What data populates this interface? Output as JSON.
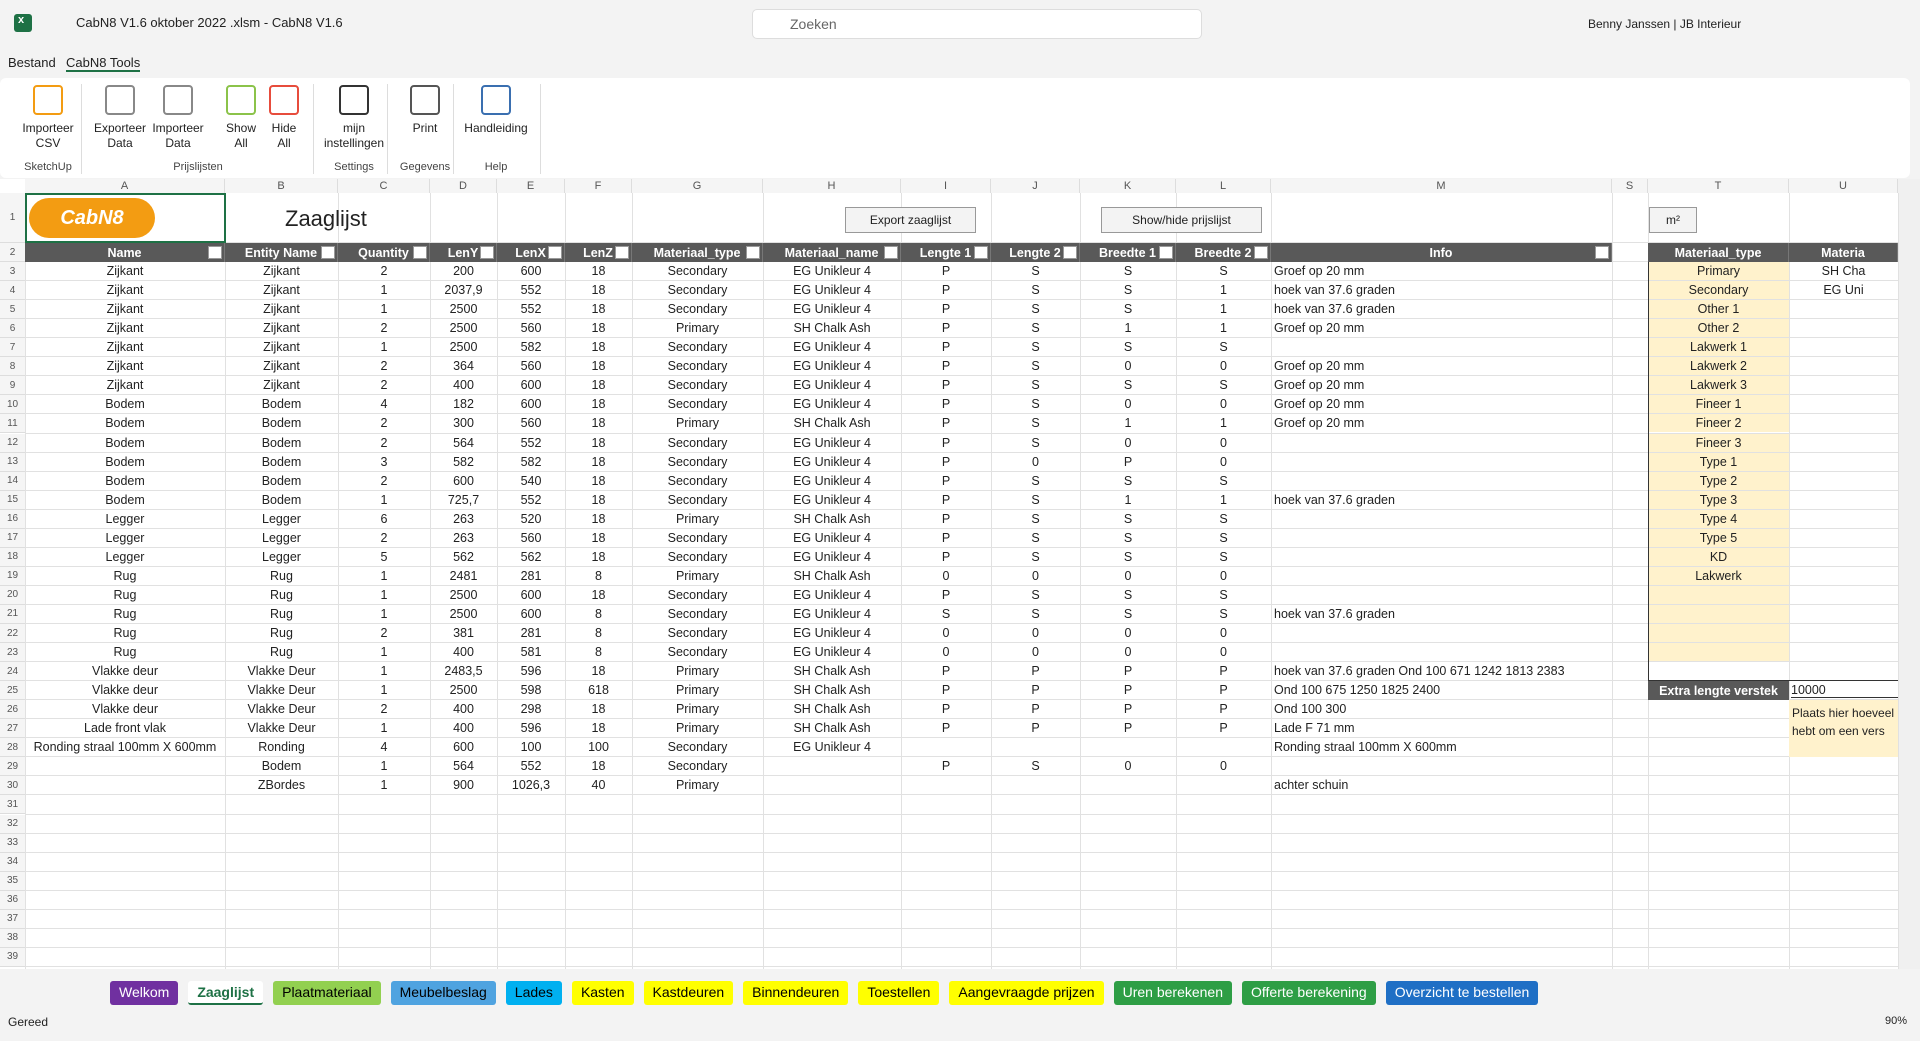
{
  "title_bar": {
    "file": "CabN8 V1.6 oktober 2022 .xlsm  -  CabN8 V1.6",
    "search": "Zoeken",
    "user": "Benny Janssen | JB Interieur"
  },
  "menu": [
    "Bestand",
    "CabN8 Tools"
  ],
  "ribbon": {
    "groups": [
      {
        "label": "SketchUp",
        "buttons": [
          [
            "Importeer",
            "CSV"
          ]
        ]
      },
      {
        "label": "Prijslijsten",
        "buttons": [
          [
            "Exporteer",
            "Data"
          ],
          [
            "Importeer",
            "Data"
          ],
          [
            "Show",
            "All"
          ],
          [
            "Hide",
            "All"
          ]
        ]
      },
      {
        "label": "Settings",
        "buttons": [
          [
            "mijn",
            "instellingen"
          ]
        ]
      },
      {
        "label": "Gegevens",
        "buttons": [
          [
            "Print"
          ]
        ]
      },
      {
        "label": "Help",
        "buttons": [
          [
            "Handleiding"
          ]
        ]
      }
    ]
  },
  "sheet": {
    "column_letters": [
      "A",
      "B",
      "C",
      "D",
      "E",
      "F",
      "G",
      "H",
      "I",
      "J",
      "K",
      "L",
      "M",
      "S",
      "T",
      "U"
    ],
    "row_numbers": [
      1,
      2,
      3,
      4,
      5,
      6,
      7,
      8,
      9,
      10,
      11,
      12,
      13,
      14,
      15,
      16,
      17,
      18,
      19,
      20,
      21,
      22,
      23,
      24,
      25,
      26,
      27,
      28,
      29,
      30,
      31,
      32,
      33,
      34,
      35,
      36,
      37,
      38,
      39
    ],
    "logo": "CabN8",
    "title": "Zaaglijst",
    "buttons": [
      "Export zaaglijst",
      "Show/hide prijslijst",
      "m²"
    ],
    "headers": [
      "Name",
      "Entity Name",
      "Quantity",
      "LenY",
      "LenX",
      "LenZ",
      "Materiaal_type",
      "Materiaal_name",
      "Lengte 1",
      "Lengte 2",
      "Breedte 1",
      "Breedte 2",
      "Info"
    ],
    "rows": [
      [
        "Zijkant",
        "Zijkant",
        "2",
        "200",
        "600",
        "18",
        "Secondary",
        "EG Unikleur 4",
        "P",
        "S",
        "S",
        "S",
        "Groef op 20 mm"
      ],
      [
        "Zijkant",
        "Zijkant",
        "1",
        "2037,9",
        "552",
        "18",
        "Secondary",
        "EG Unikleur 4",
        "P",
        "S",
        "S",
        "1",
        "hoek van 37.6 graden"
      ],
      [
        "Zijkant",
        "Zijkant",
        "1",
        "2500",
        "552",
        "18",
        "Secondary",
        "EG Unikleur 4",
        "P",
        "S",
        "S",
        "1",
        "hoek van 37.6 graden"
      ],
      [
        "Zijkant",
        "Zijkant",
        "2",
        "2500",
        "560",
        "18",
        "Primary",
        "SH Chalk Ash",
        "P",
        "S",
        "1",
        "1",
        "Groef op 20 mm"
      ],
      [
        "Zijkant",
        "Zijkant",
        "1",
        "2500",
        "582",
        "18",
        "Secondary",
        "EG Unikleur 4",
        "P",
        "S",
        "S",
        "S",
        null
      ],
      [
        "Zijkant",
        "Zijkant",
        "2",
        "364",
        "560",
        "18",
        "Secondary",
        "EG Unikleur 4",
        "P",
        "S",
        "0",
        "0",
        "Groef op 20 mm"
      ],
      [
        "Zijkant",
        "Zijkant",
        "2",
        "400",
        "600",
        "18",
        "Secondary",
        "EG Unikleur 4",
        "P",
        "S",
        "S",
        "S",
        "Groef op 20 mm"
      ],
      [
        "Bodem",
        "Bodem",
        "4",
        "182",
        "600",
        "18",
        "Secondary",
        "EG Unikleur 4",
        "P",
        "S",
        "0",
        "0",
        "Groef op 20 mm"
      ],
      [
        "Bodem",
        "Bodem",
        "2",
        "300",
        "560",
        "18",
        "Primary",
        "SH Chalk Ash",
        "P",
        "S",
        "1",
        "1",
        "Groef op 20 mm"
      ],
      [
        "Bodem",
        "Bodem",
        "2",
        "564",
        "552",
        "18",
        "Secondary",
        "EG Unikleur 4",
        "P",
        "S",
        "0",
        "0",
        null
      ],
      [
        "Bodem",
        "Bodem",
        "3",
        "582",
        "582",
        "18",
        "Secondary",
        "EG Unikleur 4",
        "P",
        "0",
        "P",
        "0",
        null
      ],
      [
        "Bodem",
        "Bodem",
        "2",
        "600",
        "540",
        "18",
        "Secondary",
        "EG Unikleur 4",
        "P",
        "S",
        "S",
        "S",
        null
      ],
      [
        "Bodem",
        "Bodem",
        "1",
        "725,7",
        "552",
        "18",
        "Secondary",
        "EG Unikleur 4",
        "P",
        "S",
        "1",
        "1",
        "hoek van 37.6 graden"
      ],
      [
        "Legger",
        "Legger",
        "6",
        "263",
        "520",
        "18",
        "Primary",
        "SH Chalk Ash",
        "P",
        "S",
        "S",
        "S",
        null
      ],
      [
        "Legger",
        "Legger",
        "2",
        "263",
        "560",
        "18",
        "Secondary",
        "EG Unikleur 4",
        "P",
        "S",
        "S",
        "S",
        null
      ],
      [
        "Legger",
        "Legger",
        "5",
        "562",
        "562",
        "18",
        "Secondary",
        "EG Unikleur 4",
        "P",
        "S",
        "S",
        "S",
        null
      ],
      [
        "Rug",
        "Rug",
        "1",
        "2481",
        "281",
        "8",
        "Primary",
        "SH Chalk Ash",
        "0",
        "0",
        "0",
        "0",
        null
      ],
      [
        "Rug",
        "Rug",
        "1",
        "2500",
        "600",
        "18",
        "Secondary",
        "EG Unikleur 4",
        "P",
        "S",
        "S",
        "S",
        null
      ],
      [
        "Rug",
        "Rug",
        "1",
        "2500",
        "600",
        "8",
        "Secondary",
        "EG Unikleur 4",
        "S",
        "S",
        "S",
        "S",
        "hoek van 37.6 graden"
      ],
      [
        "Rug",
        "Rug",
        "2",
        "381",
        "281",
        "8",
        "Secondary",
        "EG Unikleur 4",
        "0",
        "0",
        "0",
        "0",
        null
      ],
      [
        "Rug",
        "Rug",
        "1",
        "400",
        "581",
        "8",
        "Secondary",
        "EG Unikleur 4",
        "0",
        "0",
        "0",
        "0",
        null
      ],
      [
        "Vlakke deur",
        "Vlakke Deur",
        "1",
        "2483,5",
        "596",
        "18",
        "Primary",
        "SH Chalk Ash",
        "P",
        "P",
        "P",
        "P",
        "hoek van 37.6 graden Ond 100  671  1242  1813  2383"
      ],
      [
        "Vlakke deur",
        "Vlakke Deur",
        "1",
        "2500",
        "598",
        "618",
        "Primary",
        "SH Chalk Ash",
        "P",
        "P",
        "P",
        "P",
        "Ond 100  675  1250  1825  2400"
      ],
      [
        "Vlakke deur",
        "Vlakke Deur",
        "2",
        "400",
        "298",
        "18",
        "Primary",
        "SH Chalk Ash",
        "P",
        "P",
        "P",
        "P",
        "Ond 100  300"
      ],
      [
        "Lade front vlak",
        "Vlakke Deur",
        "1",
        "400",
        "596",
        "18",
        "Primary",
        "SH Chalk Ash",
        "P",
        "P",
        "P",
        "P",
        "Lade F 71 mm"
      ],
      [
        "Ronding straal 100mm X 600mm",
        "Ronding",
        "4",
        "600",
        "100",
        "100",
        "Secondary",
        "EG Unikleur 4",
        null,
        null,
        null,
        null,
        "Ronding straal 100mm X 600mm"
      ],
      [
        null,
        "Bodem",
        "1",
        "564",
        "552",
        "18",
        "Secondary",
        null,
        "P",
        "S",
        "0",
        "0",
        null
      ],
      [
        null,
        "ZBordes",
        "1",
        "900",
        "1026,3",
        "40",
        "Primary",
        null,
        null,
        null,
        null,
        null,
        "achter schuin"
      ]
    ],
    "side_table": {
      "headers": [
        "Materiaal_type",
        "Materia"
      ],
      "rows": [
        [
          "Primary",
          "SH Cha"
        ],
        [
          "Secondary",
          "EG Uni"
        ],
        [
          "Other 1",
          null
        ],
        [
          "Other 2",
          null
        ],
        [
          "Lakwerk 1",
          null
        ],
        [
          "Lakwerk 2",
          null
        ],
        [
          "Lakwerk 3",
          null
        ],
        [
          "Fineer 1",
          null
        ],
        [
          "Fineer 2",
          null
        ],
        [
          "Fineer 3",
          null
        ],
        [
          "Type 1",
          null
        ],
        [
          "Type 2",
          null
        ],
        [
          "Type 3",
          null
        ],
        [
          "Type 4",
          null
        ],
        [
          "Type 5",
          null
        ],
        [
          "KD",
          null
        ],
        [
          "Lakwerk",
          null
        ]
      ]
    },
    "extra": {
      "label": "Extra lengte verstek",
      "value": "10000",
      "note": [
        "Plaats hier hoeveel",
        "hebt om een vers"
      ]
    }
  },
  "tabs": [
    {
      "name": "Welkom",
      "color": "#7030a0",
      "text": "#ffffff"
    },
    {
      "name": "Zaaglijst",
      "color": "#ffffff",
      "text": "#1e7145"
    },
    {
      "name": "Plaatmateriaal",
      "color": "#92d050",
      "text": "#000000"
    },
    {
      "name": "Meubelbeslag",
      "color": "#4fa3e0",
      "text": "#000000"
    },
    {
      "name": "Lades",
      "color": "#00b0f0",
      "text": "#000000"
    },
    {
      "name": "Kasten",
      "color": "#ffff00",
      "text": "#000000"
    },
    {
      "name": "Kastdeuren",
      "color": "#ffff00",
      "text": "#000000"
    },
    {
      "name": "Binnendeuren",
      "color": "#ffff00",
      "text": "#000000"
    },
    {
      "name": "Toestellen",
      "color": "#ffff00",
      "text": "#000000"
    },
    {
      "name": "Aangevraagde prijzen",
      "color": "#ffff00",
      "text": "#000000"
    },
    {
      "name": "Uren berekenen",
      "color": "#2e9e45",
      "text": "#ffffff"
    },
    {
      "name": "Offerte berekening",
      "color": "#2e9e45",
      "text": "#ffffff"
    },
    {
      "name": "Overzicht te bestellen",
      "color": "#1f6fc5",
      "text": "#ffffff"
    }
  ],
  "status": {
    "ready": "Gereed",
    "zoom": "90%"
  }
}
